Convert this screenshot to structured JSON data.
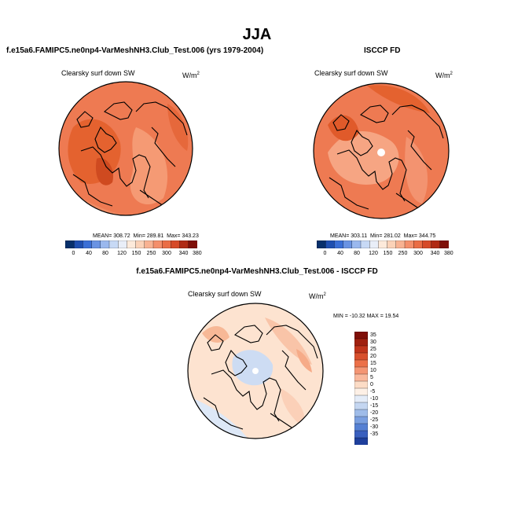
{
  "main_title": "JJA",
  "left_title": "f.e15a6.FAMIPC5.ne0np4-VarMeshNH3.Club_Test.006 (yrs 1979-2004)",
  "right_title": "ISCCP FD",
  "diff_title": "f.e15a6.FAMIPC5.ne0np4-VarMeshNH3.Club_Test.006 - ISCCP FD",
  "panels": {
    "left": {
      "label": "Clearsky surf down SW",
      "units": "W/m",
      "units_sup": "2",
      "stats": "MEAN= 308.72  Min= 289.81  Max= 343.23"
    },
    "right": {
      "label": "Clearsky surf down SW",
      "units": "W/m",
      "units_sup": "2",
      "stats": "MEAN= 303.11  Min= 281.02  Max= 344.75"
    },
    "diff": {
      "label": "Clearsky surf down SW",
      "units": "W/m",
      "units_sup": "2",
      "stats": "MIN = -10.32 MAX = 19.54"
    }
  },
  "colorbar_abs": {
    "ticks": [
      "0",
      "40",
      "80",
      "120",
      "150",
      "250",
      "300",
      "340",
      "380"
    ],
    "colors": [
      "#08306b",
      "#1f4fb0",
      "#3b6fd6",
      "#6a93e3",
      "#9ab8ee",
      "#c7d9f5",
      "#e9eef8",
      "#fdeadb",
      "#fbd2b8",
      "#f8b292",
      "#f48f6b",
      "#ea6d45",
      "#d64a28",
      "#b02a14",
      "#7f0f08"
    ]
  },
  "colorbar_diff": {
    "ticks": [
      "35",
      "30",
      "25",
      "20",
      "15",
      "10",
      "5",
      "0",
      "-5",
      "-10",
      "-15",
      "-20",
      "-25",
      "-30",
      "-35"
    ],
    "colors": [
      "#7f0f08",
      "#a0200f",
      "#c0341b",
      "#d8502d",
      "#ec7048",
      "#f49573",
      "#f9b89c",
      "#fcdcc6",
      "#fdf0e6",
      "#e4ecf8",
      "#c4d6f1",
      "#9fbce9",
      "#7a9fe0",
      "#5580d3",
      "#3a60bf",
      "#1e3f9c"
    ]
  }
}
